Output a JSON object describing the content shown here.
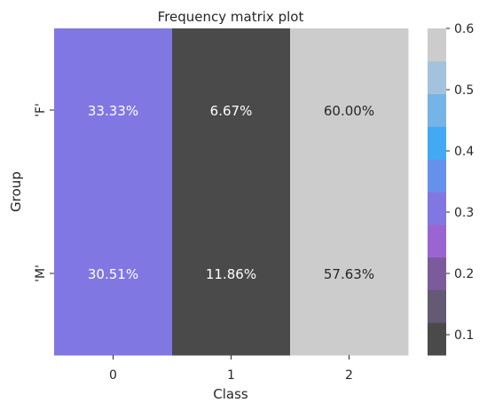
{
  "chart_data": {
    "type": "heatmap",
    "title": "Frequency matrix plot",
    "xlabel": "Class",
    "ylabel": "Group",
    "x_categories": [
      "0",
      "1",
      "2"
    ],
    "y_categories": [
      "'F'",
      "'M'"
    ],
    "values": [
      [
        0.3333,
        0.0667,
        0.6
      ],
      [
        0.3051,
        0.1186,
        0.5763
      ]
    ],
    "cell_labels": [
      [
        "33.33%",
        "6.67%",
        "60.00%"
      ],
      [
        "30.51%",
        "11.86%",
        "57.63%"
      ]
    ],
    "colorbar": {
      "ticks": [
        "0.1",
        "0.2",
        "0.3",
        "0.4",
        "0.5",
        "0.6"
      ],
      "tick_values": [
        0.1,
        0.2,
        0.3,
        0.4,
        0.5,
        0.6
      ],
      "range": [
        0.0667,
        0.6
      ],
      "bands": [
        "#4a4a4a",
        "#645a74",
        "#7b5b9b",
        "#9b64d3",
        "#8177e2",
        "#6591ec",
        "#42a9f4",
        "#74b4e6",
        "#a3c2de",
        "#cccccc"
      ]
    }
  }
}
